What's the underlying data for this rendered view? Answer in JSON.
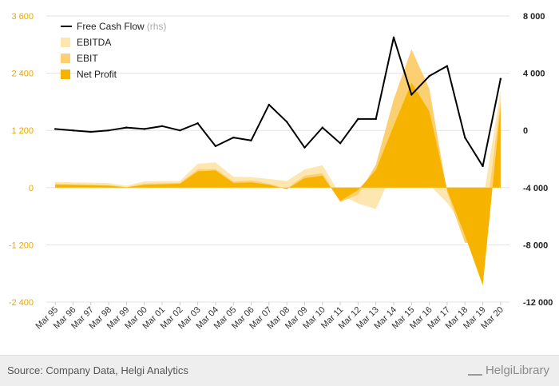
{
  "chart_data": {
    "type": "area",
    "x": [
      "Mar 95",
      "Mar 96",
      "Mar 97",
      "Mar 98",
      "Mar 99",
      "Mar 00",
      "Mar 01",
      "Mar 02",
      "Mar 03",
      "Mar 04",
      "Mar 05",
      "Mar 06",
      "Mar 07",
      "Mar 08",
      "Mar 09",
      "Mar 10",
      "Mar 11",
      "Mar 12",
      "Mar 13",
      "Mar 14",
      "Mar 15",
      "Mar 16",
      "Mar 17",
      "Mar 18",
      "Mar 19",
      "Mar 20"
    ],
    "x_tick_labels": [
      "Mar 95",
      "Mar 96",
      "Mar 97",
      "Mar 98",
      "Mar 99",
      "Mar 00",
      "Mar 01",
      "Mar 02",
      "Mar 03",
      "Mar 04",
      "Mar 05",
      "Mar 06",
      "Mar 07",
      "Mar 08",
      "Mar 09",
      "Mar 10",
      "Mar 11",
      "Mar 12",
      "Mar 13",
      "Mar 14",
      "Mar 15",
      "Mar 16",
      "Mar 17",
      "Mar 18",
      "Mar 19",
      "Mar 20"
    ],
    "y_left": {
      "ylim": [
        -2400,
        3600
      ],
      "ticks": [
        "-2 400",
        "-1 200",
        "0",
        "1 200",
        "2 400",
        "3 600"
      ],
      "tick_values": [
        -2400,
        -1200,
        0,
        1200,
        2400,
        3600
      ],
      "color": "#e8a800"
    },
    "y_right": {
      "ylim": [
        -12000,
        8000
      ],
      "ticks": [
        "-12 000",
        "-8 000",
        "-4 000",
        "0",
        "4 000",
        "8 000"
      ],
      "tick_values": [
        -12000,
        -8000,
        -4000,
        0,
        4000,
        8000
      ]
    },
    "grid": true,
    "legend_position": "top-left",
    "series": [
      {
        "name": "EBITDA",
        "axis": "left",
        "kind": "area",
        "color": "#fde6b0",
        "values": [
          120,
          110,
          105,
          95,
          40,
          130,
          140,
          140,
          500,
          530,
          230,
          220,
          180,
          140,
          380,
          470,
          -150,
          -330,
          -450,
          380,
          470,
          60,
          -320,
          -850,
          -300,
          2030
        ]
      },
      {
        "name": "EBIT",
        "axis": "left",
        "kind": "area",
        "color": "#fcd072",
        "values": [
          80,
          70,
          65,
          55,
          10,
          80,
          90,
          100,
          380,
          390,
          130,
          150,
          80,
          -20,
          250,
          300,
          -300,
          -150,
          480,
          1850,
          2900,
          2080,
          -100,
          -1160,
          -1150,
          1820
        ]
      },
      {
        "name": "Net Profit",
        "axis": "left",
        "kind": "area",
        "color": "#f6b400",
        "values": [
          60,
          55,
          50,
          40,
          5,
          60,
          70,
          80,
          340,
          360,
          100,
          110,
          60,
          -30,
          200,
          250,
          -280,
          -50,
          370,
          1300,
          2200,
          1600,
          -50,
          -1000,
          -2050,
          1700
        ]
      },
      {
        "name": "Free Cash Flow",
        "sublabel": "(rhs)",
        "axis": "right",
        "kind": "line",
        "color": "#000000",
        "values": [
          100,
          0,
          -100,
          0,
          200,
          100,
          300,
          0,
          500,
          -1100,
          -500,
          -700,
          1800,
          600,
          -1200,
          200,
          -900,
          800,
          800,
          6500,
          2500,
          3800,
          4500,
          -500,
          -2500,
          3600
        ]
      }
    ]
  },
  "footer": {
    "source": "Source: Company Data, Helgi Analytics",
    "brand": "HelgiLibrary"
  }
}
